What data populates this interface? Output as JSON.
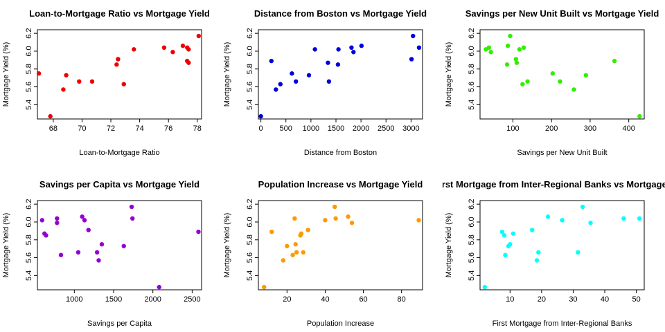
{
  "chart_data": [
    {
      "type": "scatter",
      "title": "Loan-to-Mortgage Ratio vs Mortgage Yield",
      "xlabel": "Loan-to-Mortgage Ratio",
      "ylabel": "Mortgage Yield (%)",
      "color": "#ee0000",
      "xlim": [
        66.9,
        78.3
      ],
      "ylim": [
        5.24,
        6.24
      ],
      "xticks": [
        68,
        70,
        72,
        74,
        76,
        78
      ],
      "yticks": [
        5.4,
        5.6,
        5.8,
        6.0,
        6.2
      ],
      "x": [
        67.0,
        67.8,
        68.7,
        68.9,
        69.8,
        70.7,
        72.4,
        72.5,
        72.9,
        73.6,
        75.7,
        76.3,
        77.0,
        77.3,
        77.3,
        77.4,
        77.4,
        78.1
      ],
      "y": [
        5.75,
        5.27,
        5.57,
        5.73,
        5.66,
        5.66,
        5.85,
        5.91,
        5.63,
        6.02,
        6.04,
        5.99,
        6.06,
        5.89,
        6.04,
        5.87,
        6.02,
        6.17
      ]
    },
    {
      "type": "scatter",
      "title": "Distance from Boston vs Mortgage Yield",
      "xlabel": "Distance from Boston",
      "ylabel": "Mortgage Yield (%)",
      "color": "#0000dd",
      "xlim": [
        -50,
        3230
      ],
      "ylim": [
        5.24,
        6.24
      ],
      "xticks": [
        0,
        500,
        1000,
        1500,
        2000,
        2500,
        3000
      ],
      "yticks": [
        5.4,
        5.6,
        5.8,
        6.0,
        6.2
      ],
      "x": [
        0,
        210,
        300,
        390,
        620,
        700,
        960,
        1080,
        1340,
        1360,
        1540,
        1550,
        1810,
        1850,
        2010,
        3010,
        3040,
        3160
      ],
      "y": [
        5.27,
        5.89,
        5.57,
        5.63,
        5.75,
        5.66,
        5.73,
        6.02,
        5.87,
        5.66,
        5.85,
        6.02,
        6.04,
        5.99,
        6.06,
        5.91,
        6.17,
        6.04
      ]
    },
    {
      "type": "scatter",
      "title": "Savings per New Unit Built vs Mortgage Yield",
      "xlabel": "Savings per New Unit Built",
      "ylabel": "Mortgage Yield (%)",
      "color": "#33ee00",
      "xlim": [
        15,
        440
      ],
      "ylim": [
        5.24,
        6.24
      ],
      "xticks": [
        100,
        200,
        300,
        400
      ],
      "yticks": [
        5.4,
        5.6,
        5.8,
        6.0,
        6.2
      ],
      "x": [
        30,
        38,
        43,
        85,
        87,
        93,
        108,
        110,
        117,
        125,
        128,
        138,
        203,
        222,
        258,
        289,
        363,
        428
      ],
      "y": [
        6.02,
        6.04,
        5.99,
        5.85,
        6.06,
        6.17,
        5.91,
        5.87,
        6.02,
        5.63,
        6.04,
        5.66,
        5.75,
        5.66,
        5.57,
        5.73,
        5.89,
        5.27
      ]
    },
    {
      "type": "scatter",
      "title": "Savings per Capita vs Mortgage Yield",
      "xlabel": "Savings per Capita",
      "ylabel": "Mortgage Yield (%)",
      "color": "#9400d3",
      "xlim": [
        530,
        2620
      ],
      "ylim": [
        5.24,
        6.24
      ],
      "xticks": [
        1000,
        1500,
        2000,
        2500
      ],
      "yticks": [
        5.4,
        5.6,
        5.8,
        6.0,
        6.2
      ],
      "x": [
        590,
        620,
        640,
        780,
        780,
        830,
        1050,
        1100,
        1130,
        1180,
        1290,
        1310,
        1350,
        1630,
        1730,
        1740,
        2080,
        2580
      ],
      "y": [
        6.02,
        5.87,
        5.85,
        6.04,
        5.99,
        5.63,
        5.66,
        6.06,
        6.02,
        5.91,
        5.66,
        5.57,
        5.75,
        5.73,
        6.17,
        6.04,
        5.27,
        5.89
      ]
    },
    {
      "type": "scatter",
      "title": "Population Increase vs Mortgage Yield",
      "xlabel": "Population Increase",
      "ylabel": "Mortgage Yield (%)",
      "color": "#ff9900",
      "xlim": [
        5,
        91
      ],
      "ylim": [
        5.24,
        6.24
      ],
      "xticks": [
        20,
        40,
        60,
        80
      ],
      "yticks": [
        5.4,
        5.6,
        5.8,
        6.0,
        6.2
      ],
      "x": [
        8,
        12,
        18,
        20,
        23,
        24,
        24.5,
        25,
        27,
        27.5,
        28.5,
        31,
        40,
        45,
        45.5,
        52,
        54,
        89
      ],
      "y": [
        5.27,
        5.89,
        5.57,
        5.73,
        5.63,
        6.04,
        5.75,
        5.66,
        5.85,
        5.87,
        5.66,
        5.91,
        6.02,
        6.17,
        6.04,
        6.06,
        5.99,
        6.02
      ]
    },
    {
      "type": "scatter",
      "title": "First Mortgage from Inter-Regional Banks vs Mortgage Yield",
      "xlabel": "First Mortgage from Inter-Regional Banks",
      "ylabel": "Mortgage Yield (%)",
      "color": "#00ffff",
      "xlim": [
        0.5,
        52.5
      ],
      "ylim": [
        5.24,
        6.24
      ],
      "xticks": [
        10,
        20,
        30,
        40,
        50
      ],
      "yticks": [
        5.4,
        5.6,
        5.8,
        6.0,
        6.2
      ],
      "x": [
        2,
        7.5,
        8.2,
        8.5,
        9.5,
        10,
        11,
        17,
        18.5,
        19,
        22,
        26.5,
        31.5,
        33,
        35.5,
        46,
        51
      ],
      "y": [
        5.27,
        5.89,
        5.85,
        5.63,
        5.73,
        5.75,
        5.87,
        5.91,
        5.57,
        5.66,
        6.06,
        6.02,
        5.66,
        6.17,
        5.99,
        6.04,
        6.04
      ]
    }
  ]
}
